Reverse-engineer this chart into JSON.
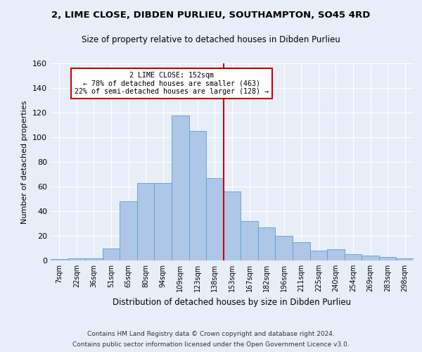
{
  "title": "2, LIME CLOSE, DIBDEN PURLIEU, SOUTHAMPTON, SO45 4RD",
  "subtitle": "Size of property relative to detached houses in Dibden Purlieu",
  "xlabel": "Distribution of detached houses by size in Dibden Purlieu",
  "ylabel": "Number of detached properties",
  "bar_labels": [
    "7sqm",
    "22sqm",
    "36sqm",
    "51sqm",
    "65sqm",
    "80sqm",
    "94sqm",
    "109sqm",
    "123sqm",
    "138sqm",
    "153sqm",
    "167sqm",
    "182sqm",
    "196sqm",
    "211sqm",
    "225sqm",
    "240sqm",
    "254sqm",
    "269sqm",
    "283sqm",
    "298sqm"
  ],
  "bar_values": [
    1,
    2,
    2,
    10,
    48,
    63,
    63,
    118,
    105,
    67,
    56,
    32,
    27,
    20,
    15,
    8,
    9,
    5,
    4,
    3,
    2
  ],
  "bar_color": "#aec6e8",
  "bar_edge_color": "#5a9fd4",
  "annotation_text": "2 LIME CLOSE: 152sqm\n← 78% of detached houses are smaller (463)\n22% of semi-detached houses are larger (128) →",
  "vline_x_index": 10,
  "vline_color": "#cc0000",
  "annotation_box_color": "#cc0000",
  "ylim": [
    0,
    160
  ],
  "yticks": [
    0,
    20,
    40,
    60,
    80,
    100,
    120,
    140,
    160
  ],
  "background_color": "#e8eef8",
  "grid_color": "#ffffff",
  "footer_line1": "Contains HM Land Registry data © Crown copyright and database right 2024.",
  "footer_line2": "Contains public sector information licensed under the Open Government Licence v3.0."
}
